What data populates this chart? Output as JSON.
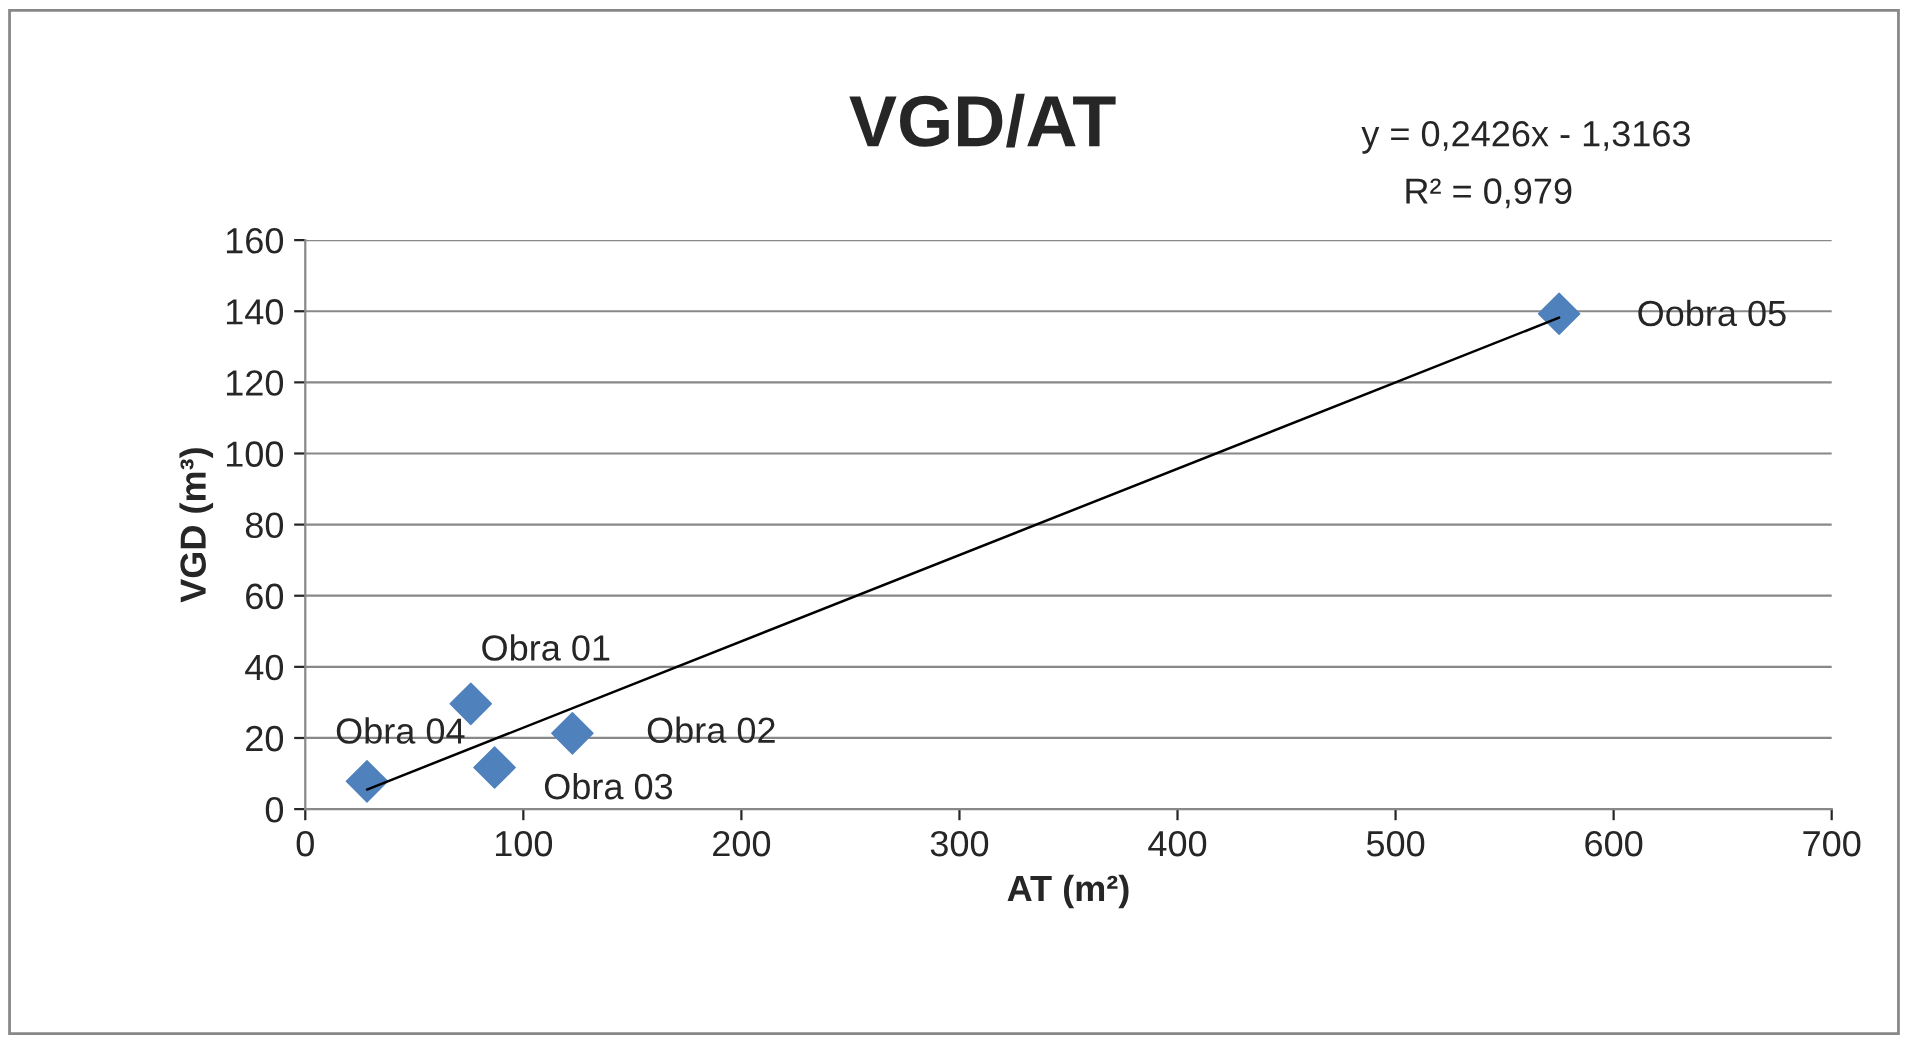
{
  "chart_data": {
    "type": "scatter",
    "title": "VGD/AT",
    "xlabel": "AT (m²)",
    "ylabel": "VGD (m³)",
    "x": [
      75.9,
      122.5,
      86.8,
      28.3,
      575
    ],
    "series": [
      {
        "color": "#4f81bd",
        "values": [
          29.6,
          21.3,
          11.7,
          7.8,
          139.3
        ],
        "marker": "diamond"
      },
      {
        "type": "line",
        "color": "#000000",
        "x": [
          28.3,
          575
        ],
        "values": [
          5.5,
          138.2
        ],
        "marker": "none",
        "line_style": "solid"
      }
    ],
    "annotations": [
      {
        "text": "Obra 01",
        "x": 75.9,
        "y": 29.6
      },
      {
        "text": "Obra 02",
        "x": 122.5,
        "y": 21.3
      },
      {
        "text": "Obra 03",
        "x": 86.8,
        "y": 11.7
      },
      {
        "text": "Obra 04",
        "x": 28.3,
        "y": 7.8
      },
      {
        "text": "Oobra 05",
        "x": 575,
        "y": 139.3
      },
      "y = 0,2426x - 1,3163",
      "R² = 0,979"
    ],
    "xlim": [
      0,
      700
    ],
    "xticks": [
      0,
      100,
      200,
      300,
      400,
      500,
      600,
      700
    ],
    "ylim": [
      0,
      160
    ],
    "yticks": [
      0,
      20,
      40,
      60,
      80,
      100,
      120,
      140,
      160
    ],
    "grid": "y"
  }
}
